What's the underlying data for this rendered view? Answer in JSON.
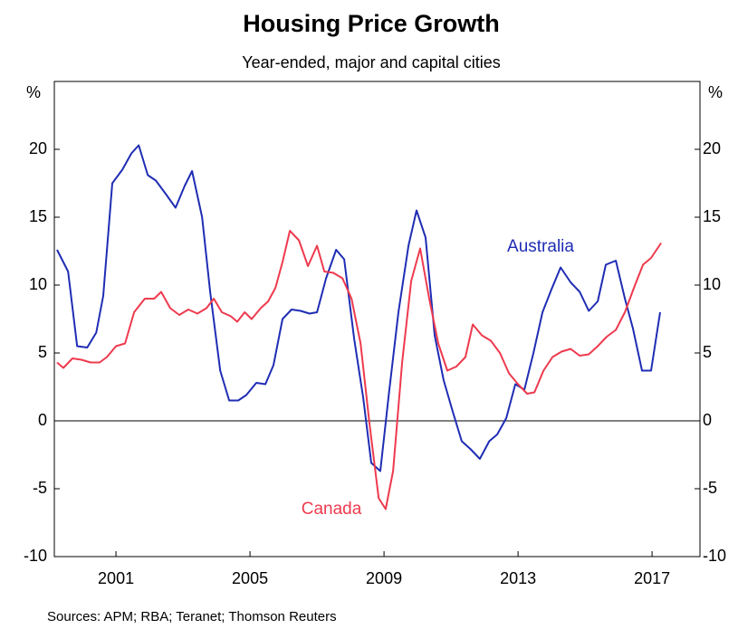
{
  "chart_data": {
    "type": "line",
    "title": "Housing Price Growth",
    "subtitle": "Year-ended, major and capital cities",
    "ylabel": "%",
    "y2label": "%",
    "source": "Sources:   APM; RBA; Teranet; Thomson Reuters",
    "xlim": [
      1999.16,
      2018.43
    ],
    "xticks": [
      2001,
      2005,
      2009,
      2013,
      2017
    ],
    "ylim": [
      -10,
      25
    ],
    "yticks": [
      -10,
      -5,
      0,
      5,
      10,
      15,
      20
    ],
    "y2lim": [
      -10,
      25
    ],
    "y2ticks": [
      -10,
      -5,
      0,
      5,
      10,
      15,
      20
    ],
    "grid": false,
    "zero_line": true,
    "series": [
      {
        "name": "Australia",
        "color": "#1f2db4",
        "x": [
          1999.24,
          1999.57,
          1999.84,
          2000.14,
          2000.41,
          2000.62,
          2000.89,
          2001.19,
          2001.46,
          2001.68,
          2001.95,
          2002.19,
          2002.49,
          2002.78,
          2003.05,
          2003.27,
          2003.57,
          2003.81,
          2004.11,
          2004.38,
          2004.65,
          2004.89,
          2005.19,
          2005.46,
          2005.7,
          2005.97,
          2006.24,
          2006.51,
          2006.78,
          2007.0,
          2007.27,
          2007.57,
          2007.81,
          2008.11,
          2008.38,
          2008.62,
          2008.89,
          2009.14,
          2009.43,
          2009.73,
          2009.97,
          2010.24,
          2010.51,
          2010.78,
          2011.05,
          2011.32,
          2011.59,
          2011.86,
          2012.14,
          2012.38,
          2012.65,
          2012.92,
          2013.19,
          2013.46,
          2013.73,
          2014.0,
          2014.27,
          2014.57,
          2014.84,
          2015.11,
          2015.38,
          2015.62,
          2015.92,
          2016.19,
          2016.43,
          2016.7,
          2016.97,
          2017.24
        ],
        "values": [
          12.6,
          11,
          5.5,
          5.4,
          6.5,
          9.2,
          17.5,
          18.5,
          19.7,
          20.3,
          18.1,
          17.7,
          16.7,
          15.7,
          17.3,
          18.4,
          15,
          9.5,
          3.7,
          1.5,
          1.5,
          1.9,
          2.8,
          2.7,
          4.1,
          7.5,
          8.2,
          8.1,
          7.9,
          8,
          10.5,
          12.6,
          11.9,
          6,
          1.7,
          -3.1,
          -3.7,
          1.9,
          8,
          12.9,
          15.5,
          13.5,
          6.3,
          3,
          0.7,
          -1.5,
          -2.1,
          -2.8,
          -1.5,
          -1,
          0.2,
          2.7,
          2.3,
          5,
          8,
          9.7,
          11.3,
          10.2,
          9.5,
          8.1,
          8.8,
          11.5,
          11.8,
          9,
          6.8,
          3.7,
          3.7,
          8
        ]
      },
      {
        "name": "Canada",
        "color": "#ee3a4e",
        "x": [
          1999.24,
          1999.43,
          1999.7,
          1999.97,
          2000.24,
          2000.51,
          2000.73,
          2001.0,
          2001.27,
          2001.54,
          2001.86,
          2002.14,
          2002.35,
          2002.62,
          2002.89,
          2003.16,
          2003.43,
          2003.7,
          2003.92,
          2004.16,
          2004.43,
          2004.62,
          2004.84,
          2005.05,
          2005.32,
          2005.54,
          2005.76,
          2005.97,
          2006.19,
          2006.46,
          2006.73,
          2007.0,
          2007.22,
          2007.49,
          2007.76,
          2008.03,
          2008.3,
          2008.57,
          2008.84,
          2009.05,
          2009.27,
          2009.54,
          2009.81,
          2010.08,
          2010.35,
          2010.62,
          2010.89,
          2011.16,
          2011.43,
          2011.65,
          2011.92,
          2012.19,
          2012.46,
          2012.73,
          2013.0,
          2013.27,
          2013.49,
          2013.76,
          2014.03,
          2014.3,
          2014.57,
          2014.84,
          2015.11,
          2015.38,
          2015.65,
          2015.92,
          2016.19,
          2016.46,
          2016.73,
          2016.97,
          2017.27
        ],
        "values": [
          4.3,
          3.9,
          4.6,
          4.5,
          4.3,
          4.3,
          4.7,
          5.5,
          5.7,
          8,
          9,
          9,
          9.5,
          8.3,
          7.8,
          8.2,
          7.9,
          8.3,
          9,
          8,
          7.7,
          7.3,
          8,
          7.5,
          8.3,
          8.8,
          9.8,
          11.7,
          14,
          13.3,
          11.4,
          12.9,
          11,
          10.9,
          10.5,
          9,
          5.7,
          -0.3,
          -5.7,
          -6.5,
          -3.7,
          4.3,
          10.3,
          12.7,
          9,
          5.7,
          3.7,
          4,
          4.7,
          7.1,
          6.3,
          5.9,
          5,
          3.5,
          2.7,
          2,
          2.1,
          3.7,
          4.7,
          5.1,
          5.3,
          4.8,
          4.9,
          5.5,
          6.2,
          6.7,
          8,
          9.8,
          11.5,
          12,
          13.1
        ]
      }
    ]
  }
}
